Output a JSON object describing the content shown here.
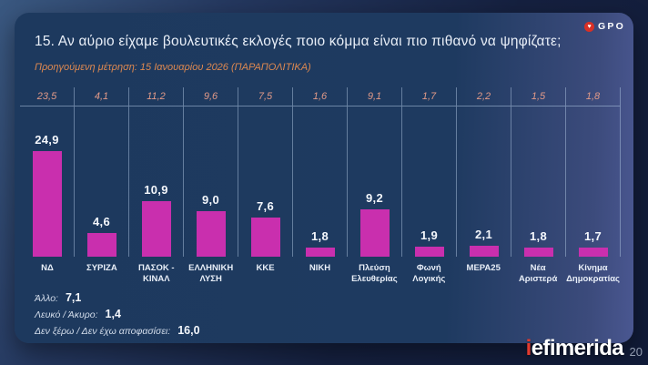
{
  "brand": {
    "logo_text": "GPO",
    "logo_icon": "heart-badge"
  },
  "header": {
    "title": "15. Αν αύριο είχαμε βουλευτικές εκλογές ποιο κόμμα είναι πιο πιθανό να ψηφίζατε;",
    "subtitle": "Προηγούμενη μέτρηση: 15 Ιανουαρίου 2026 (ΠΑΡΑΠΟΛΙΤΙΚΑ)"
  },
  "chart_data": {
    "type": "bar",
    "title": "15. Αν αύριο είχαμε βουλευτικές εκλογές ποιο κόμμα είναι πιο πιθανό να ψηφίζατε;",
    "categories": [
      "ΝΔ",
      "ΣΥΡΙΖΑ",
      "ΠΑΣΟΚ - ΚΙΝΑΛ",
      "ΕΛΛΗΝΙΚΗ ΛΥΣΗ",
      "ΚΚΕ",
      "ΝΙΚΗ",
      "Πλεύση Ελευθερίας",
      "Φωνή Λογικής",
      "ΜΕΡΑ25",
      "Νέα Αριστερά",
      "Κίνημα Δημοκρατίας"
    ],
    "values": [
      24.9,
      4.6,
      10.9,
      9.0,
      7.6,
      1.8,
      9.2,
      1.9,
      2.1,
      1.8,
      1.7
    ],
    "previous_values": [
      23.5,
      4.1,
      11.2,
      9.6,
      7.5,
      1.6,
      9.1,
      1.7,
      2.2,
      1.5,
      1.8
    ],
    "bar_color": "#c92fae",
    "value_labels_shown": true,
    "gridlines": "vertical-column-separators",
    "legend": "none"
  },
  "footnotes": [
    {
      "label": "Άλλο:",
      "value": "7,1"
    },
    {
      "label": "Λευκό / Άκυρο:",
      "value": "1,4"
    },
    {
      "label": "Δεν ξέρω / Δεν έχω αποφασίσει:",
      "value": "16,0"
    }
  ],
  "footer": {
    "logo_prefix": "i",
    "logo_rest": "efimerida",
    "page_number": "20"
  },
  "colors": {
    "accent_bar": "#c92fae",
    "subtitle_orange": "#df8950",
    "previous_value_salmon": "#e29a88",
    "card_navy": "#1e3a60",
    "logo_red": "#e23a2e"
  }
}
